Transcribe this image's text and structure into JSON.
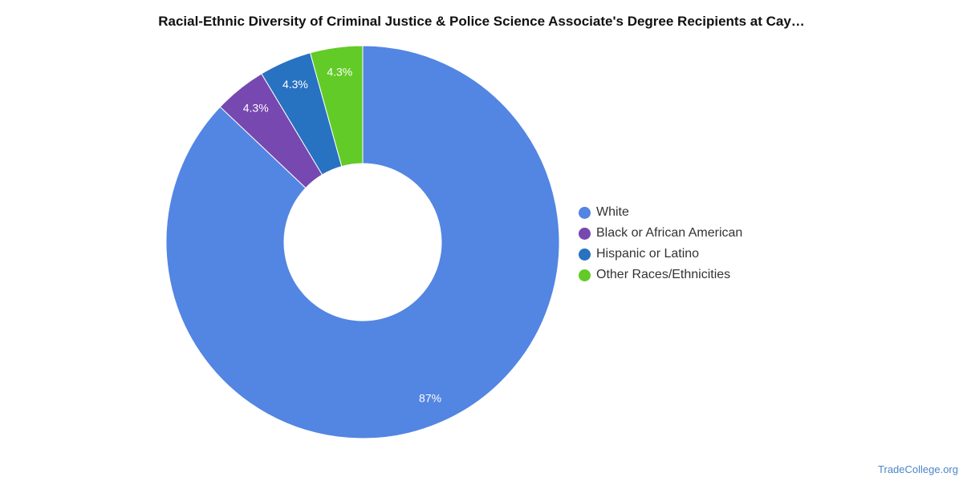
{
  "chart_data": {
    "type": "pie",
    "variant": "donut",
    "title": "Racial-Ethnic Diversity of Criminal Justice & Police Science Associate's Degree Recipients at Cay…",
    "series": [
      {
        "name": "White",
        "value": 87,
        "label": "87%",
        "color": "#5385e2"
      },
      {
        "name": "Black or African American",
        "value": 4.3,
        "label": "4.3%",
        "color": "#7748b0"
      },
      {
        "name": "Hispanic or Latino",
        "value": 4.3,
        "label": "4.3%",
        "color": "#2872c2"
      },
      {
        "name": "Other Races/Ethnicities",
        "value": 4.3,
        "label": "4.3%",
        "color": "#62cb27"
      }
    ],
    "legend_position": "right"
  },
  "watermark": "TradeCollege.org"
}
